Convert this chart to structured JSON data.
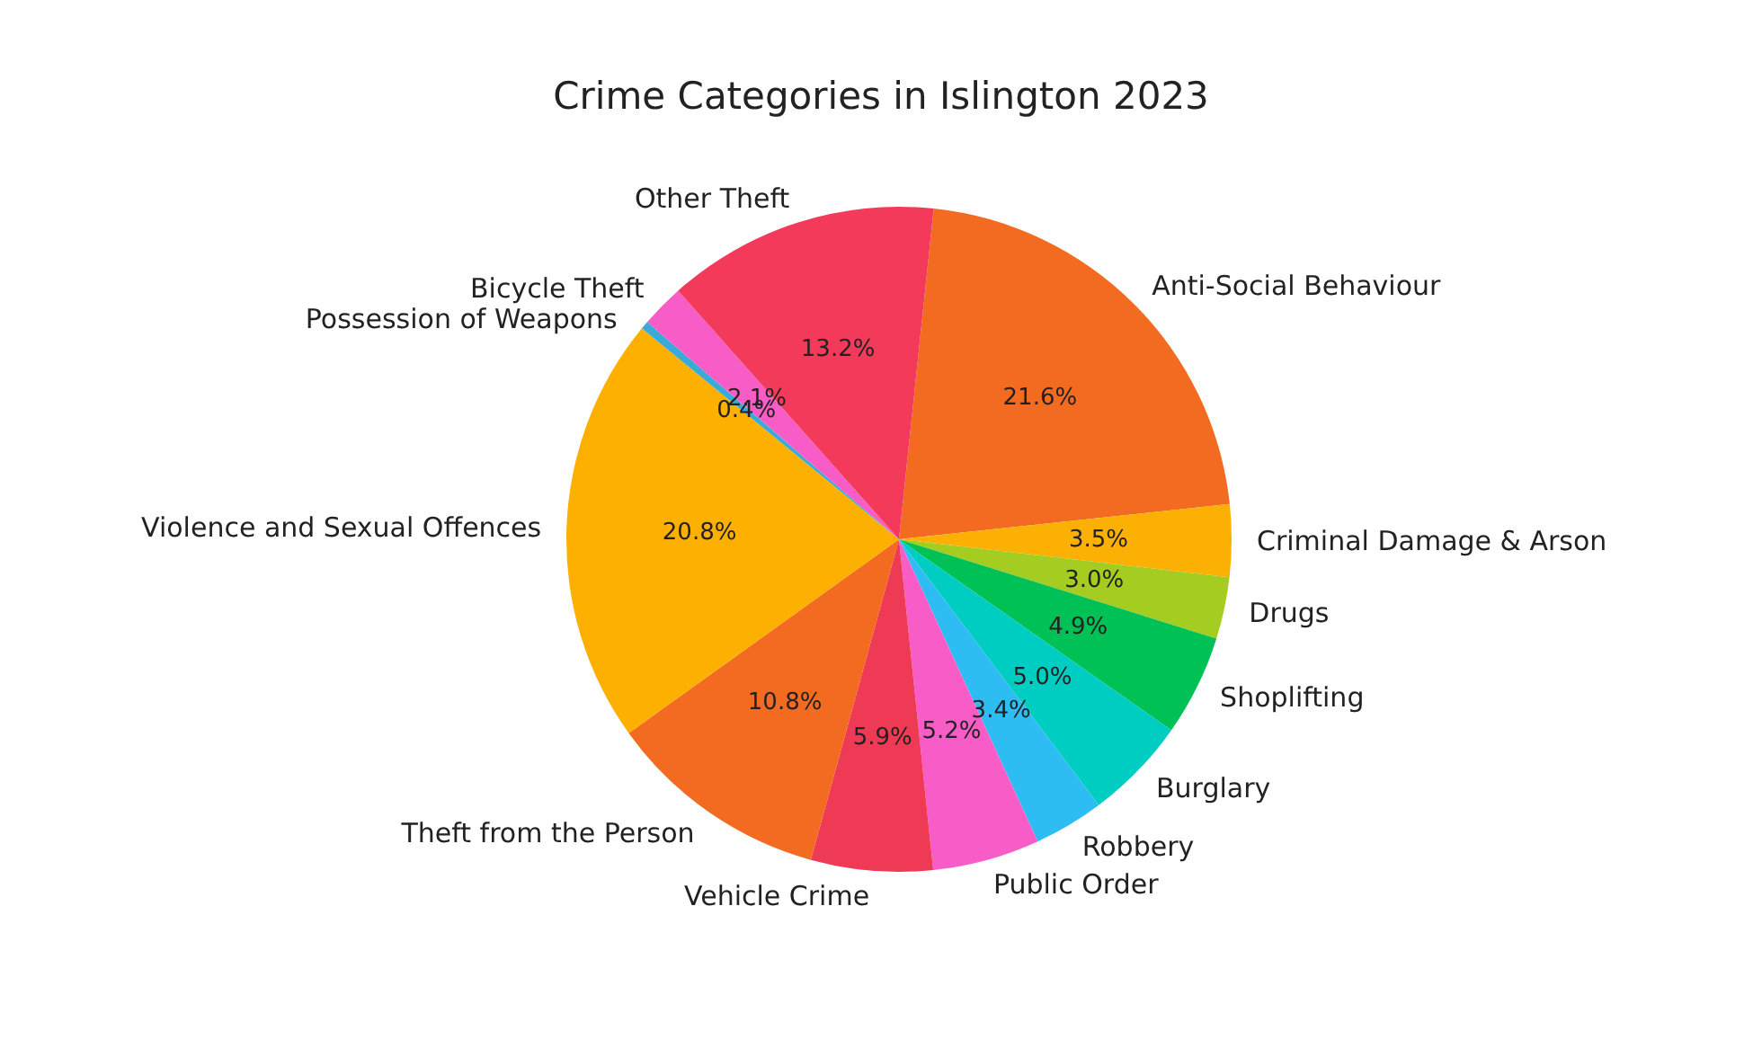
{
  "chart_data": {
    "type": "pie",
    "title": "Crime Categories in Islington 2023",
    "categories": [
      "Anti-Social Behaviour",
      "Criminal Damage & Arson",
      "Drugs",
      "Shoplifting",
      "Burglary",
      "Robbery",
      "Public Order",
      "Vehicle Crime",
      "Theft from the Person",
      "Violence and Sexual Offences",
      "Possession of Weapons",
      "Bicycle Theft",
      "Other Theft"
    ],
    "values": [
      21.6,
      3.5,
      3.0,
      4.9,
      5.0,
      3.4,
      5.2,
      5.9,
      10.8,
      20.8,
      0.4,
      2.1,
      13.2
    ],
    "value_labels": [
      "21.6%",
      "3.5%",
      "3.0%",
      "4.9%",
      "5.0%",
      "3.4%",
      "5.2%",
      "5.9%",
      "10.8%",
      "20.8%",
      "0.4%",
      "2.1%",
      "13.2%"
    ],
    "colors": [
      "#f26b21",
      "#fbb003",
      "#a5cd21",
      "#00c155",
      "#00cdc2",
      "#2ebdf3",
      "#f85cc6",
      "#ef3a56",
      "#f26b21",
      "#fdb000",
      "#3aabd9",
      "#f85cc6",
      "#f43a5a"
    ],
    "legend": false
  }
}
